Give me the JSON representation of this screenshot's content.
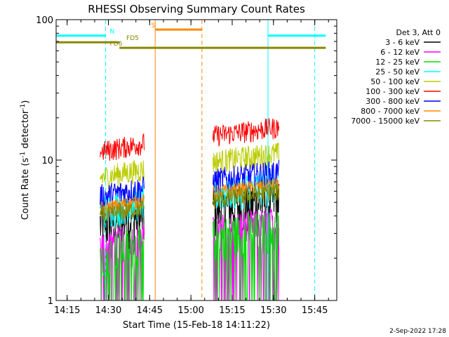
{
  "chart_data": {
    "type": "line",
    "title": "RHESSI Observing Summary Count Rates",
    "xlabel": "Start Time (15-Feb-18 14:11:22)",
    "ylabel_prefix": "Count Rate (s",
    "ylabel_exp1": "-1",
    "ylabel_middle": " detector",
    "ylabel_exp2": "-1",
    "ylabel_suffix": ")",
    "y_scale": "log",
    "ylim": [
      1,
      100
    ],
    "xlim": [
      "14:11",
      "15:53"
    ],
    "x_ticks": [
      "14:15",
      "14:30",
      "14:45",
      "15:00",
      "15:15",
      "15:30",
      "15:45"
    ],
    "y_ticks": [
      "1",
      "10",
      "100"
    ],
    "legend_title": "Det 3, Att 0",
    "series": [
      {
        "name": "3 - 6 keV",
        "color": "#000000",
        "base": 3.5,
        "noise": 0.45,
        "floor": 1.0
      },
      {
        "name": "6 - 12 keV",
        "color": "#ff00ff",
        "base": 2.5,
        "noise": 0.25,
        "floor": 1.0
      },
      {
        "name": "12 - 25 keV",
        "color": "#00dd00",
        "base": 2.2,
        "noise": 0.35,
        "floor": 1.0
      },
      {
        "name": "25 - 50 keV",
        "color": "#00ffff",
        "base": 4.5,
        "noise": 0.3,
        "floor": 1.0
      },
      {
        "name": "50 - 100 keV",
        "color": "#bbcc00",
        "base": 7.5,
        "noise": 0.2,
        "floor": 1.0
      },
      {
        "name": "100 - 300 keV",
        "color": "#ff0000",
        "base": 11.5,
        "noise": 0.18,
        "floor": 1.0
      },
      {
        "name": "300 - 800 keV",
        "color": "#0000ff",
        "base": 5.5,
        "noise": 0.22,
        "floor": 1.0
      },
      {
        "name": "800 - 7000 keV",
        "color": "#ff8800",
        "base": 4.5,
        "noise": 0.12,
        "floor": 1.0
      },
      {
        "name": "7000 - 15000 keV",
        "color": "#888800",
        "base": 4.0,
        "noise": 0.15,
        "floor": 1.0
      }
    ],
    "data_intervals": [
      {
        "start": "14:27",
        "end": "14:43",
        "scale": 1.0
      },
      {
        "start": "15:08",
        "end": "15:32",
        "scale": 1.3
      }
    ],
    "flag_bars": [
      {
        "label": "N",
        "color": "#00ffff",
        "y": 77,
        "start": "14:11",
        "end": "14:29",
        "label_at": "14:30"
      },
      {
        "label": "N",
        "color": "#00ffff",
        "y": 77,
        "start": "15:28",
        "end": "15:49",
        "label_at": ""
      },
      {
        "label": "S",
        "color": "#ff8800",
        "y": 85,
        "start": "14:47",
        "end": "15:04",
        "label_at": "14:45"
      },
      {
        "label": "FD5",
        "color": "#888800",
        "y": 69,
        "start": "14:11",
        "end": "14:34",
        "label_at": "14:36"
      },
      {
        "label": "FD6",
        "color": "#888800",
        "y": 63,
        "start": "14:34",
        "end": "15:49",
        "label_at": "14:30"
      }
    ],
    "markers": [
      {
        "time": "14:11",
        "color": "#00ffff",
        "style": "solid"
      },
      {
        "time": "14:29",
        "color": "#00ffff",
        "style": "dashed"
      },
      {
        "time": "14:47",
        "color": "#ff8800",
        "style": "solid"
      },
      {
        "time": "15:04",
        "color": "#ff8800",
        "style": "dashed"
      },
      {
        "time": "15:28",
        "color": "#00ffff",
        "style": "solid"
      },
      {
        "time": "15:45",
        "color": "#00ffff",
        "style": "dashed"
      }
    ],
    "grid": false,
    "legend_placement": "right"
  },
  "footer": {
    "date_stamp": "2-Sep-2022 17:28"
  }
}
